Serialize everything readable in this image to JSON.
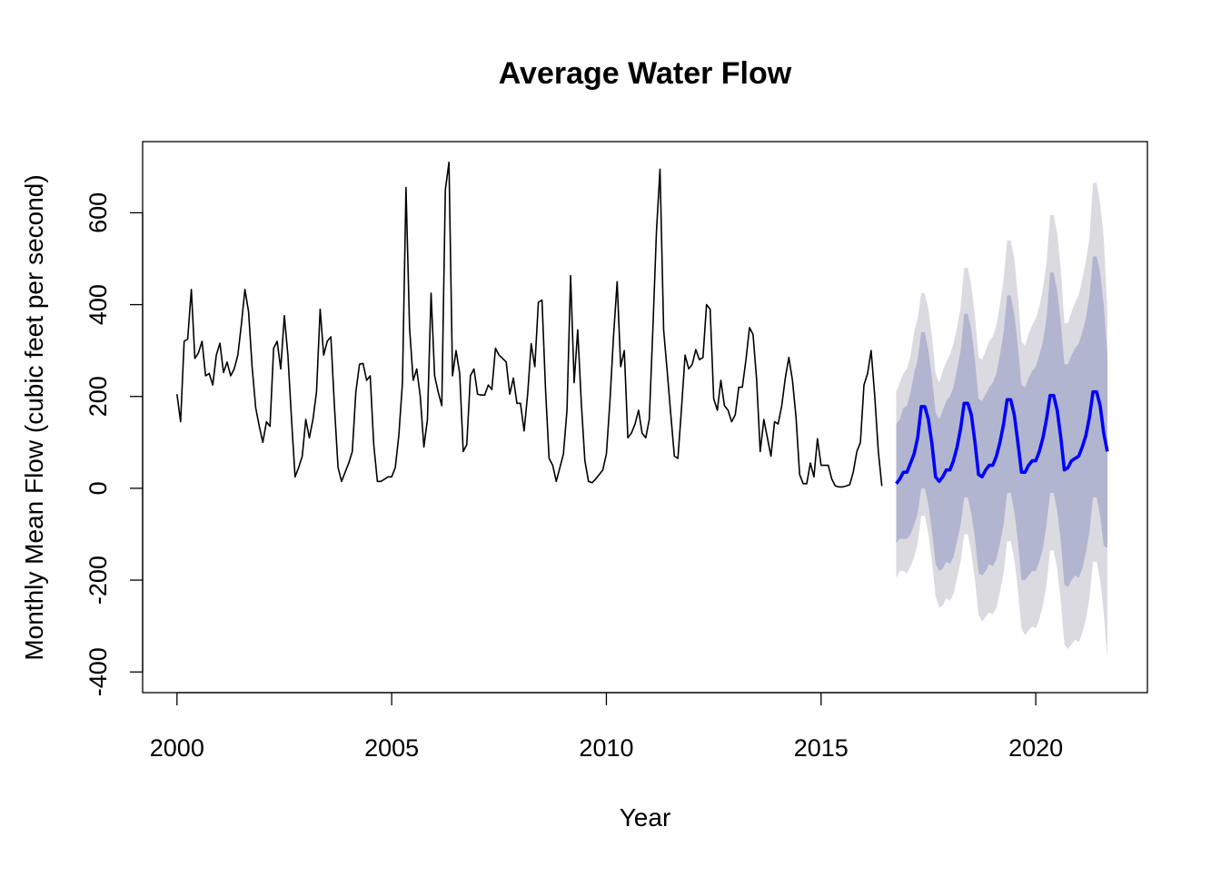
{
  "chart_data": {
    "type": "line",
    "title": "Average Water Flow",
    "xlabel": "Year",
    "ylabel": "Monthly Mean Flow (cubic feet per second)",
    "xlim": [
      1999.2,
      2022.6
    ],
    "ylim": [
      -445,
      755
    ],
    "x_ticks": [
      2000,
      2005,
      2010,
      2015,
      2020
    ],
    "y_ticks": [
      -400,
      -200,
      0,
      200,
      400,
      600
    ],
    "grid": false,
    "legend": "none",
    "series": [
      {
        "kind": "observed",
        "color": "#000000",
        "start": 2000.0,
        "step": 0.083333,
        "values": [
          205,
          145,
          320,
          325,
          433,
          283,
          295,
          320,
          245,
          250,
          225,
          290,
          316,
          252,
          275,
          245,
          260,
          290,
          357,
          433,
          385,
          265,
          175,
          135,
          100,
          145,
          135,
          305,
          320,
          260,
          376,
          290,
          150,
          25,
          45,
          70,
          150,
          110,
          150,
          210,
          390,
          290,
          320,
          330,
          180,
          45,
          15,
          35,
          55,
          80,
          210,
          270,
          272,
          235,
          245,
          95,
          15,
          15,
          20,
          25,
          25,
          45,
          115,
          230,
          655,
          350,
          235,
          260,
          200,
          90,
          150,
          425,
          245,
          210,
          180,
          650,
          710,
          245,
          300,
          250,
          80,
          95,
          245,
          260,
          205,
          203,
          203,
          225,
          215,
          305,
          290,
          283,
          275,
          205,
          240,
          185,
          185,
          125,
          205,
          315,
          265,
          405,
          410,
          215,
          65,
          50,
          15,
          45,
          75,
          170,
          463,
          230,
          345,
          185,
          60,
          15,
          12,
          20,
          30,
          40,
          75,
          190,
          330,
          450,
          265,
          300,
          110,
          120,
          140,
          170,
          120,
          110,
          150,
          350,
          560,
          695,
          345,
          255,
          160,
          70,
          65,
          175,
          290,
          260,
          270,
          302,
          280,
          285,
          400,
          390,
          195,
          170,
          235,
          180,
          170,
          145,
          160,
          220,
          220,
          280,
          350,
          335,
          235,
          80,
          150,
          110,
          70,
          145,
          140,
          180,
          240,
          285,
          235,
          155,
          30,
          10,
          10,
          55,
          25,
          108,
          50,
          50,
          50,
          20,
          5,
          3,
          3,
          5,
          8,
          35,
          80,
          100,
          225,
          250,
          300,
          200,
          80,
          5
        ]
      },
      {
        "kind": "forecast",
        "color": "#0000ff",
        "start": 2016.75,
        "step": 0.083333,
        "values": [
          10,
          20,
          35,
          35,
          55,
          75,
          110,
          178,
          178,
          150,
          95,
          25,
          15,
          25,
          40,
          40,
          60,
          90,
          130,
          185,
          185,
          160,
          100,
          30,
          25,
          40,
          50,
          50,
          70,
          100,
          140,
          193,
          193,
          160,
          100,
          35,
          35,
          50,
          60,
          60,
          80,
          110,
          150,
          202,
          202,
          170,
          110,
          40,
          45,
          60,
          65,
          70,
          90,
          115,
          155,
          210,
          210,
          180,
          120,
          80
        ]
      },
      {
        "kind": "interval-80",
        "color": "#b2b5d0",
        "upper": [
          140,
          150,
          175,
          180,
          210,
          250,
          280,
          340,
          340,
          300,
          240,
          165,
          150,
          170,
          190,
          200,
          220,
          260,
          300,
          380,
          380,
          345,
          280,
          195,
          190,
          205,
          220,
          230,
          250,
          290,
          340,
          420,
          420,
          380,
          310,
          225,
          220,
          240,
          255,
          265,
          290,
          320,
          370,
          470,
          470,
          430,
          360,
          270,
          270,
          290,
          305,
          315,
          340,
          370,
          420,
          505,
          505,
          470,
          400,
          290
        ],
        "lower": [
          -120,
          -110,
          -110,
          -110,
          -100,
          -80,
          -55,
          0,
          0,
          -35,
          -95,
          -165,
          -180,
          -175,
          -160,
          -165,
          -150,
          -115,
          -80,
          -20,
          -20,
          -55,
          -110,
          -185,
          -190,
          -180,
          -165,
          -170,
          -155,
          -120,
          -80,
          -10,
          -10,
          -50,
          -115,
          -200,
          -200,
          -190,
          -180,
          -180,
          -160,
          -130,
          -80,
          -10,
          -10,
          -50,
          -115,
          -210,
          -215,
          -200,
          -190,
          -195,
          -175,
          -140,
          -95,
          -20,
          -20,
          -60,
          -125,
          -130
        ]
      },
      {
        "kind": "interval-95",
        "color": "#dadae0",
        "upper": [
          210,
          230,
          250,
          260,
          290,
          340,
          370,
          425,
          425,
          390,
          330,
          250,
          230,
          255,
          275,
          290,
          315,
          350,
          395,
          480,
          480,
          440,
          375,
          285,
          280,
          300,
          320,
          330,
          355,
          400,
          455,
          540,
          540,
          500,
          420,
          320,
          310,
          335,
          355,
          370,
          395,
          435,
          490,
          595,
          595,
          555,
          475,
          360,
          360,
          385,
          405,
          420,
          455,
          495,
          545,
          665,
          665,
          620,
          545,
          390
        ],
        "lower": [
          -195,
          -180,
          -180,
          -185,
          -170,
          -150,
          -120,
          -60,
          -60,
          -100,
          -160,
          -235,
          -260,
          -255,
          -240,
          -245,
          -230,
          -195,
          -160,
          -100,
          -100,
          -140,
          -200,
          -275,
          -290,
          -280,
          -270,
          -275,
          -260,
          -225,
          -185,
          -115,
          -115,
          -155,
          -220,
          -305,
          -320,
          -310,
          -300,
          -305,
          -285,
          -255,
          -210,
          -135,
          -135,
          -175,
          -245,
          -340,
          -350,
          -340,
          -330,
          -335,
          -315,
          -285,
          -240,
          -160,
          -160,
          -200,
          -270,
          -370
        ]
      }
    ]
  }
}
